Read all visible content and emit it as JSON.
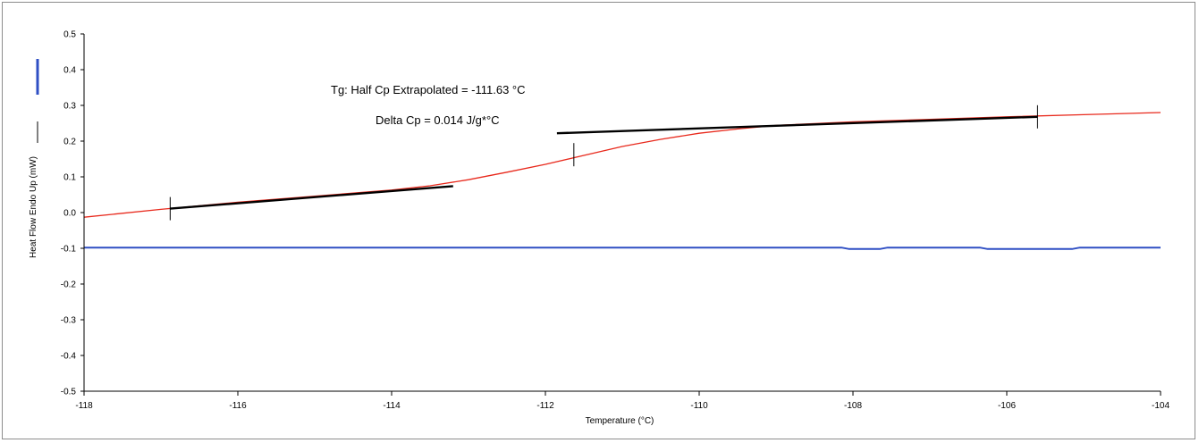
{
  "chart_data": {
    "type": "line",
    "title": "",
    "xlabel": "Temperature (°C)",
    "ylabel": "Heat Flow Endo Up (mW)",
    "xlim": [
      -118,
      -104
    ],
    "ylim": [
      -0.5,
      0.5
    ],
    "x_ticks": [
      "-118",
      "-116",
      "-114",
      "-112",
      "-110",
      "-108",
      "-106",
      "-104"
    ],
    "y_ticks": [
      "0.5",
      "0.4",
      "0.3",
      "0.2",
      "0.1",
      "0.0",
      "-0.1",
      "-0.2",
      "-0.3",
      "-0.4",
      "-0.5"
    ],
    "grid": false,
    "legend": "left",
    "series": [
      {
        "color": "#e8291c",
        "x": [
          -118.0,
          -117.0,
          -116.0,
          -115.0,
          -114.0,
          -113.5,
          -113.0,
          -112.5,
          -112.0,
          -111.5,
          -111.0,
          -110.5,
          -110.0,
          -109.5,
          -109.0,
          -108.0,
          -107.0,
          -106.0,
          -105.0,
          -104.0
        ],
        "y": [
          -0.013,
          0.009,
          0.029,
          0.046,
          0.063,
          0.075,
          0.092,
          0.113,
          0.135,
          0.16,
          0.185,
          0.205,
          0.222,
          0.234,
          0.244,
          0.254,
          0.261,
          0.268,
          0.274,
          0.28
        ]
      },
      {
        "color": "#2f4fc4",
        "x": [
          -118.0,
          -108.15,
          -108.05,
          -107.65,
          -107.55,
          -106.35,
          -106.25,
          -105.15,
          -105.05,
          -104.0
        ],
        "y": [
          -0.098,
          -0.098,
          -0.102,
          -0.102,
          -0.098,
          -0.098,
          -0.102,
          -0.102,
          -0.098,
          -0.098
        ]
      }
    ],
    "tangent_lines": [
      {
        "x": [
          -116.88,
          -113.2
        ],
        "y": [
          0.011,
          0.074
        ]
      },
      {
        "x": [
          -111.85,
          -105.6
        ],
        "y": [
          0.222,
          0.268
        ]
      }
    ],
    "markers": [
      {
        "x": -116.88,
        "y": 0.011
      },
      {
        "x": -111.63,
        "y": 0.162
      },
      {
        "x": -105.6,
        "y": 0.268
      }
    ],
    "legend_colors": [
      "#2f4fc4",
      "#000000"
    ],
    "annotations": [
      "Tg: Half Cp Extrapolated = -111.63 °C",
      "Delta Cp = 0.014 J/g*°C"
    ]
  }
}
